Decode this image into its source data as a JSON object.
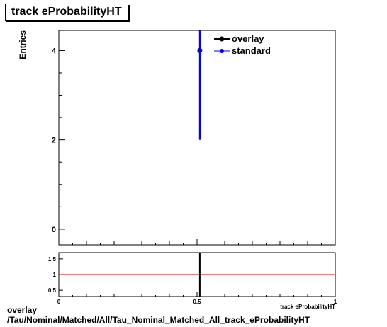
{
  "chart_data": [
    {
      "type": "scatter",
      "title": "track eProbabilityHT",
      "ylabel": "Entries",
      "xlabel": "track eProbabilityHT",
      "xlim": [
        0,
        1
      ],
      "ylim": [
        -0.35,
        4.45
      ],
      "y_ticks": [
        "0",
        "2",
        "4"
      ],
      "grid": false,
      "legend": {
        "position": "top-right",
        "entries": [
          "overlay",
          "standard"
        ]
      },
      "series": [
        {
          "name": "overlay",
          "color": "#000000",
          "points": [
            {
              "x": 0.51,
              "y": 4,
              "yerr": 2
            }
          ]
        },
        {
          "name": "standard",
          "color": "#0000ff",
          "points": [
            {
              "x": 0.51,
              "y": 4,
              "yerr": 2
            }
          ]
        }
      ]
    },
    {
      "type": "scatter",
      "xlim": [
        0,
        1
      ],
      "ylim": [
        0.3,
        1.7
      ],
      "x_ticks": [
        "0",
        "0.5",
        "1"
      ],
      "y_ticks": [
        "0.5",
        "1",
        "1.5"
      ],
      "reference_line": {
        "y": 1,
        "color": "#cc0000"
      },
      "xlabel": "track eProbabilityHT",
      "series": [
        {
          "name": "ratio",
          "color": "#000000",
          "points": [
            {
              "x": 0.51,
              "y": 1,
              "yerr": 1
            }
          ]
        }
      ]
    }
  ],
  "footer": {
    "line1": "overlay",
    "line2": "/Tau/Nominal/Matched/All/Tau_Nominal_Matched_All_track_eProbabilityHT"
  }
}
